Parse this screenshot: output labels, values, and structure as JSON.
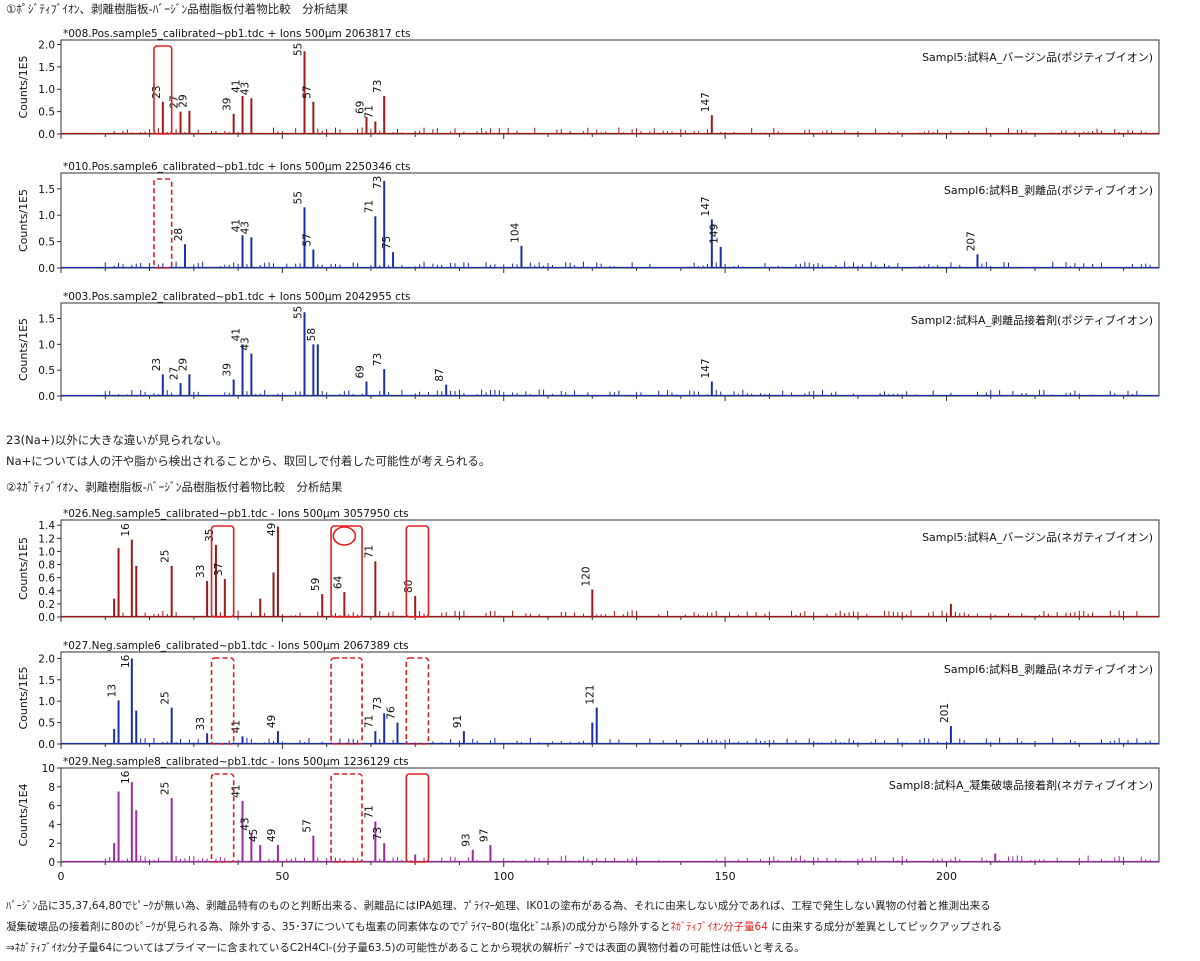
{
  "texts": {
    "section1_title": "①ﾎﾟｼﾞﾃｨﾌﾞｲｵﾝ、剥離樹脂板-ﾊﾞｰｼﾞﾝ品樹脂板付着物比較　分析結果",
    "note1_line1": "23(Na+)以外に大きな違いが見られない。",
    "note1_line2": "Na+については人の汗や脂から検出されることから、取回しで付着した可能性が考えられる。",
    "section2_title": "②ﾈｶﾞﾃｨﾌﾞｲｵﾝ、剥離樹脂板-ﾊﾞｰｼﾞﾝ品樹脂板付着物比較　分析結果",
    "conclusion_line1": "ﾊﾞｰｼﾞﾝ品に35,37,64,80でﾋﾟｰｸが無い為、剥離品特有のものと判断出来る、剥離品にはIPA処理、ﾌﾟﾗｲﾏｰ処理、IK01の塗布がある為、それに由来しない成分であれば、工程で発生しない異物の付着と推測出来る",
    "conclusion_line2_pre": "凝集破壊品の接着剤に80のﾋﾟｰｸが見られる為、除外する、35･37についても塩素の同素体なのでﾌﾟﾗｲﾏｰ80(塩化ﾋﾞﾆﾙ系)の成分から除外すると",
    "conclusion_line2_highlight": "ﾈｶﾞﾃｨﾌﾞｲｵﾝ分子量64",
    "conclusion_line2_post": " に由来する成分が差異としてピックアップされる",
    "conclusion_line3": "⇒ﾈｶﾞﾃｨﾌﾞｲｵﾝ分子量64についてはプライマーに含まれているC2H4Cl-(分子量63.5)の可能性があることから現状の解析ﾃﾞｰﾀでは表面の異物付着の可能性は低いと考える。"
  },
  "colors": {
    "red_series": "#a01818",
    "blue_series": "#1c2fa8",
    "purple_series": "#9a2aa0",
    "highlight_box": "#e02020",
    "axis": "#333333",
    "highlight_text": "#e02020"
  },
  "chart_data": [
    {
      "type": "bar",
      "title": "*008.Pos.sample5_calibrated~pb1.tdc + Ions 500µm 2063817 cts",
      "sample_label": "Sampl5:試料A_バージン品(ポジティブイオン)",
      "ylabel": "Counts/1E5",
      "ylim": [
        0,
        2.1
      ],
      "yticks": [
        "0.0",
        "0.5",
        "1.0",
        "1.5",
        "2.0"
      ],
      "ytick_values": [
        0,
        0.5,
        1.0,
        1.5,
        2.0
      ],
      "xlim": [
        0,
        248
      ],
      "color": "red_series",
      "peaks": [
        [
          23,
          0.72
        ],
        [
          27,
          0.5
        ],
        [
          29,
          0.52
        ],
        [
          39,
          0.45
        ],
        [
          41,
          0.85
        ],
        [
          43,
          0.8
        ],
        [
          55,
          1.85
        ],
        [
          57,
          0.72
        ],
        [
          69,
          0.38
        ],
        [
          71,
          0.28
        ],
        [
          73,
          0.85
        ],
        [
          147,
          0.42
        ]
      ],
      "labels": [
        23,
        27,
        29,
        39,
        41,
        43,
        55,
        57,
        69,
        71,
        73,
        147
      ],
      "highlights": [
        {
          "type": "box",
          "x0": 21,
          "x1": 25,
          "style": "solid"
        }
      ]
    },
    {
      "type": "bar",
      "title": "*010.Pos.sample6_calibrated~pb1.tdc + Ions 500µm 2250346 cts",
      "sample_label": "Sampl6:試料B_剥離品(ポジティブイオン)",
      "ylabel": "Counts/1E5",
      "ylim": [
        0,
        1.8
      ],
      "yticks": [
        "0.0",
        "0.5",
        "1.0",
        "1.5"
      ],
      "ytick_values": [
        0,
        0.5,
        1.0,
        1.5
      ],
      "xlim": [
        0,
        248
      ],
      "color": "blue_series",
      "peaks": [
        [
          28,
          0.45
        ],
        [
          41,
          0.62
        ],
        [
          43,
          0.58
        ],
        [
          55,
          1.15
        ],
        [
          57,
          0.35
        ],
        [
          71,
          0.98
        ],
        [
          73,
          1.65
        ],
        [
          75,
          0.3
        ],
        [
          104,
          0.42
        ],
        [
          147,
          0.92
        ],
        [
          149,
          0.4
        ],
        [
          207,
          0.26
        ]
      ],
      "labels": [
        28,
        41,
        43,
        55,
        57,
        71,
        73,
        75,
        104,
        147,
        149,
        207
      ],
      "highlights": [
        {
          "type": "box",
          "x0": 21,
          "x1": 25,
          "style": "dashed"
        }
      ]
    },
    {
      "type": "bar",
      "title": "*003.Pos.sample2_calibrated~pb1.tdc + Ions 500µm 2042955 cts",
      "sample_label": "Sampl2:試料A_剥離品接着剤(ポジティブイオン)",
      "ylabel": "Counts/1E5",
      "ylim": [
        0,
        1.8
      ],
      "yticks": [
        "0.0",
        "0.5",
        "1.0",
        "1.5"
      ],
      "ytick_values": [
        0,
        0.5,
        1.0,
        1.5
      ],
      "xlim": [
        0,
        248
      ],
      "color": "blue_series",
      "peaks": [
        [
          23,
          0.42
        ],
        [
          27,
          0.25
        ],
        [
          29,
          0.42
        ],
        [
          39,
          0.32
        ],
        [
          41,
          1.0
        ],
        [
          43,
          0.82
        ],
        [
          55,
          1.62
        ],
        [
          57,
          1.0
        ],
        [
          58,
          1.0
        ],
        [
          69,
          0.28
        ],
        [
          73,
          0.52
        ],
        [
          87,
          0.22
        ],
        [
          147,
          0.28
        ]
      ],
      "labels": [
        23,
        27,
        29,
        39,
        41,
        43,
        55,
        58,
        69,
        73,
        87,
        147
      ],
      "highlights": []
    },
    {
      "type": "bar",
      "title": "*026.Neg.sample5_calibrated~pb1.tdc - Ions 500µm 3057950 cts",
      "sample_label": "Sampl5:試料A_バージン品(ネガティブイオン)",
      "ylabel": "Counts/1E5",
      "ylim": [
        0,
        1.48
      ],
      "yticks": [
        "0.0",
        "0.2",
        "0.4",
        "0.6",
        "0.8",
        "1.0",
        "1.2",
        "1.4"
      ],
      "ytick_values": [
        0,
        0.2,
        0.4,
        0.6,
        0.8,
        1.0,
        1.2,
        1.4
      ],
      "xlim": [
        0,
        248
      ],
      "color": "red_series",
      "peaks": [
        [
          12,
          0.28
        ],
        [
          13,
          1.05
        ],
        [
          16,
          1.18
        ],
        [
          17,
          0.78
        ],
        [
          25,
          0.78
        ],
        [
          33,
          0.55
        ],
        [
          35,
          1.1
        ],
        [
          37,
          0.58
        ],
        [
          45,
          0.28
        ],
        [
          48,
          0.68
        ],
        [
          49,
          1.38
        ],
        [
          59,
          0.35
        ],
        [
          64,
          0.38
        ],
        [
          71,
          0.85
        ],
        [
          80,
          0.32
        ],
        [
          120,
          0.42
        ],
        [
          201,
          0.2
        ]
      ],
      "labels": [
        16,
        25,
        33,
        35,
        37,
        49,
        59,
        64,
        71,
        80,
        120
      ],
      "highlights": [
        {
          "type": "box",
          "x0": 34,
          "x1": 39,
          "style": "solid"
        },
        {
          "type": "box",
          "x0": 61,
          "x1": 68,
          "style": "solid"
        },
        {
          "type": "circle",
          "x": 64,
          "style": "solid"
        },
        {
          "type": "box",
          "x0": 78,
          "x1": 83,
          "style": "solid"
        }
      ]
    },
    {
      "type": "bar",
      "title": "*027.Neg.sample6_calibrated~pb1.tdc - Ions 500µm 2067389 cts",
      "sample_label": "Sampl6:試料B_剥離品(ネガティブイオン)",
      "ylabel": "Counts/1E5",
      "ylim": [
        0,
        2.15
      ],
      "yticks": [
        "0.0",
        "0.5",
        "1.0",
        "1.5",
        "2.0"
      ],
      "ytick_values": [
        0,
        0.5,
        1.0,
        1.5,
        2.0
      ],
      "xlim": [
        0,
        248
      ],
      "color": "blue_series",
      "peaks": [
        [
          12,
          0.35
        ],
        [
          13,
          1.02
        ],
        [
          16,
          2.0
        ],
        [
          17,
          0.78
        ],
        [
          25,
          0.85
        ],
        [
          33,
          0.25
        ],
        [
          41,
          0.18
        ],
        [
          49,
          0.3
        ],
        [
          71,
          0.3
        ],
        [
          73,
          0.72
        ],
        [
          76,
          0.5
        ],
        [
          91,
          0.3
        ],
        [
          120,
          0.5
        ],
        [
          121,
          0.85
        ],
        [
          201,
          0.42
        ]
      ],
      "labels": [
        13,
        16,
        25,
        33,
        41,
        49,
        71,
        73,
        76,
        91,
        121,
        201
      ],
      "highlights": [
        {
          "type": "box",
          "x0": 34,
          "x1": 39,
          "style": "dashed"
        },
        {
          "type": "box",
          "x0": 61,
          "x1": 68,
          "style": "dashed"
        },
        {
          "type": "box",
          "x0": 78,
          "x1": 83,
          "style": "dashed"
        }
      ]
    },
    {
      "type": "bar",
      "title": "*029.Neg.sample8_calibrated~pb1.tdc - Ions 500µm 1236129 cts",
      "sample_label": "Sampl8:試料A_凝集破壊品接着剤(ネガティブイオン)",
      "ylabel": "Counts/1E4",
      "ylim": [
        0,
        10
      ],
      "yticks": [
        "0",
        "2",
        "4",
        "6",
        "8",
        "10"
      ],
      "ytick_values": [
        0,
        2,
        4,
        6,
        8,
        10
      ],
      "xlim": [
        0,
        248
      ],
      "color": "purple_series",
      "peaks": [
        [
          12,
          2.0
        ],
        [
          13,
          7.5
        ],
        [
          16,
          8.5
        ],
        [
          17,
          5.5
        ],
        [
          25,
          6.8
        ],
        [
          41,
          6.5
        ],
        [
          43,
          3.0
        ],
        [
          45,
          1.8
        ],
        [
          49,
          1.8
        ],
        [
          57,
          2.8
        ],
        [
          71,
          4.3
        ],
        [
          73,
          2.0
        ],
        [
          80,
          0.8
        ],
        [
          93,
          1.3
        ],
        [
          97,
          1.8
        ],
        [
          211,
          0.9
        ]
      ],
      "labels": [
        16,
        25,
        41,
        43,
        45,
        49,
        57,
        71,
        73,
        93,
        97
      ],
      "highlights": [
        {
          "type": "box",
          "x0": 34,
          "x1": 39,
          "style": "dashed"
        },
        {
          "type": "box",
          "x0": 61,
          "x1": 68,
          "style": "dashed"
        },
        {
          "type": "box",
          "x0": 78,
          "x1": 83,
          "style": "solid"
        }
      ],
      "xticks": [
        0,
        50,
        100,
        150,
        200
      ]
    }
  ]
}
